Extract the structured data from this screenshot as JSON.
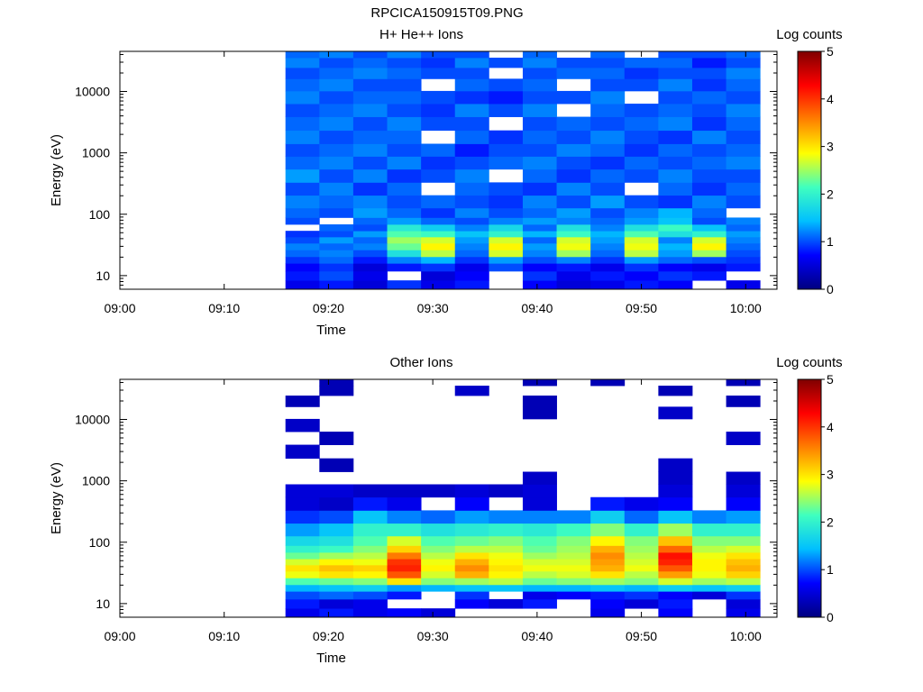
{
  "page_title": "RPCICA150915T09.PNG",
  "colorbar_stops": [
    "#00007f",
    "#0000ff",
    "#00bfff",
    "#3fffbf",
    "#ffff00",
    "#ff7f00",
    "#ff0000",
    "#7f0000"
  ],
  "chart_data": [
    {
      "type": "heatmap",
      "title": "H+ He++ Ions",
      "xlabel": "Time",
      "ylabel": "Energy (eV)",
      "yscale": "log",
      "xlim": [
        "09:00",
        "10:03"
      ],
      "ylim": [
        6,
        45000
      ],
      "xticks": [
        "09:00",
        "09:10",
        "09:20",
        "09:30",
        "09:40",
        "09:50",
        "10:00"
      ],
      "yticks": [
        "10",
        "100",
        "1000",
        "10000"
      ],
      "colorbar": {
        "label": "Log counts",
        "range": [
          0,
          5
        ],
        "ticks": [
          "0",
          "1",
          "2",
          "3",
          "4",
          "5"
        ]
      },
      "time_columns": [
        "09:17:30",
        "09:20:45",
        "09:24:00",
        "09:27:15",
        "09:30:30",
        "09:33:45",
        "09:37:00",
        "09:40:15",
        "09:43:30",
        "09:46:45",
        "09:50:00",
        "09:53:15",
        "09:56:30",
        "09:59:45"
      ],
      "energy_bins": [
        7,
        10,
        14,
        18,
        23,
        30,
        38,
        48,
        60,
        78,
        100,
        160,
        260,
        420,
        700,
        1100,
        1800,
        3000,
        5000,
        8000,
        13000,
        20000,
        30000,
        42000
      ],
      "log_counts": [
        [
          0.6,
          0.8,
          0.5,
          0.9,
          0.6,
          0.8,
          null,
          0.7,
          0.5,
          0.6,
          0.8,
          0.7,
          null,
          0.6
        ],
        [
          0.8,
          1.0,
          0.6,
          null,
          0.5,
          0.7,
          null,
          0.9,
          0.6,
          0.8,
          0.7,
          0.9,
          0.8,
          null
        ],
        [
          0.7,
          0.9,
          0.5,
          0.8,
          0.9,
          0.6,
          1.0,
          0.7,
          0.8,
          0.6,
          0.9,
          0.7,
          0.6,
          0.8
        ],
        [
          0.9,
          1.1,
          0.8,
          1.2,
          1.4,
          0.9,
          1.3,
          1.0,
          1.2,
          0.9,
          1.3,
          1.1,
          1.0,
          0.9
        ],
        [
          1.1,
          1.2,
          1.0,
          1.8,
          2.6,
          1.1,
          2.7,
          1.2,
          2.5,
          1.1,
          2.6,
          1.3,
          2.5,
          1.0
        ],
        [
          1.2,
          1.1,
          1.2,
          2.3,
          2.9,
          1.2,
          2.9,
          1.3,
          2.8,
          1.2,
          2.8,
          1.4,
          2.9,
          1.1
        ],
        [
          1.0,
          1.3,
          1.1,
          2.5,
          2.7,
          1.3,
          2.7,
          1.1,
          2.7,
          1.3,
          2.7,
          1.2,
          2.7,
          1.2
        ],
        [
          0.9,
          1.0,
          1.3,
          2.2,
          2.1,
          1.5,
          2.0,
          1.4,
          2.1,
          1.4,
          2.2,
          1.8,
          2.0,
          1.3
        ],
        [
          null,
          1.1,
          1.0,
          1.9,
          1.6,
          1.2,
          1.7,
          1.1,
          1.8,
          1.2,
          1.8,
          2.1,
          1.5,
          1.1
        ],
        [
          1.0,
          null,
          1.1,
          1.3,
          1.1,
          1.0,
          1.2,
          1.3,
          1.2,
          1.1,
          1.3,
          1.5,
          1.0,
          1.2
        ],
        [
          1.1,
          1.0,
          1.3,
          1.1,
          0.9,
          1.2,
          1.0,
          1.1,
          1.3,
          1.0,
          1.2,
          1.4,
          1.1,
          null
        ],
        [
          1.2,
          1.1,
          1.2,
          1.0,
          1.1,
          1.0,
          0.9,
          1.2,
          1.0,
          1.3,
          1.0,
          0.9,
          1.2,
          1.0
        ],
        [
          1.0,
          1.2,
          0.9,
          1.1,
          null,
          1.1,
          1.0,
          0.9,
          1.2,
          1.0,
          null,
          1.1,
          0.9,
          1.1
        ],
        [
          1.3,
          1.0,
          1.2,
          0.9,
          1.0,
          1.2,
          null,
          1.1,
          0.9,
          1.1,
          1.0,
          1.2,
          1.0,
          1.0
        ],
        [
          1.1,
          1.2,
          1.0,
          1.2,
          0.9,
          1.0,
          1.1,
          1.2,
          1.0,
          0.9,
          1.1,
          1.0,
          1.1,
          1.2
        ],
        [
          1.0,
          1.1,
          1.2,
          1.0,
          1.1,
          0.8,
          1.0,
          1.0,
          1.2,
          1.1,
          0.9,
          1.1,
          1.0,
          1.1
        ],
        [
          1.2,
          1.0,
          1.1,
          1.1,
          null,
          1.1,
          0.9,
          1.1,
          1.0,
          1.2,
          1.0,
          0.9,
          1.2,
          1.0
        ],
        [
          1.1,
          1.2,
          1.0,
          1.2,
          1.0,
          1.0,
          null,
          1.0,
          1.1,
          1.0,
          1.1,
          1.2,
          0.9,
          1.1
        ],
        [
          1.0,
          1.1,
          1.2,
          1.0,
          0.9,
          1.2,
          1.0,
          1.2,
          null,
          1.1,
          1.0,
          1.1,
          1.0,
          1.2
        ],
        [
          1.2,
          1.0,
          1.1,
          1.1,
          1.0,
          0.9,
          0.8,
          1.0,
          1.0,
          1.2,
          null,
          1.0,
          1.1,
          1.0
        ],
        [
          1.1,
          1.2,
          1.0,
          1.0,
          null,
          1.1,
          1.0,
          1.1,
          null,
          1.0,
          1.0,
          1.2,
          0.9,
          1.1
        ],
        [
          1.0,
          1.1,
          1.2,
          1.1,
          1.0,
          1.0,
          null,
          1.0,
          1.1,
          1.1,
          0.9,
          1.0,
          1.0,
          1.2
        ],
        [
          1.2,
          1.0,
          1.1,
          1.0,
          0.9,
          1.2,
          1.0,
          1.2,
          1.0,
          1.0,
          1.1,
          1.1,
          0.8,
          1.0
        ],
        [
          1.1,
          1.2,
          1.0,
          1.2,
          1.0,
          1.0,
          null,
          1.1,
          null,
          1.1,
          null,
          1.0,
          1.0,
          1.1
        ]
      ]
    },
    {
      "type": "heatmap",
      "title": "Other Ions",
      "xlabel": "Time",
      "ylabel": "Energy (eV)",
      "yscale": "log",
      "xlim": [
        "09:00",
        "10:03"
      ],
      "ylim": [
        6,
        45000
      ],
      "xticks": [
        "09:00",
        "09:10",
        "09:20",
        "09:30",
        "09:40",
        "09:50",
        "10:00"
      ],
      "yticks": [
        "10",
        "100",
        "1000",
        "10000"
      ],
      "colorbar": {
        "label": "Log counts",
        "range": [
          0,
          5
        ],
        "ticks": [
          "0",
          "1",
          "2",
          "3",
          "4",
          "5"
        ]
      },
      "time_columns": [
        "09:17:30",
        "09:20:45",
        "09:24:00",
        "09:27:15",
        "09:30:30",
        "09:33:45",
        "09:37:00",
        "09:40:15",
        "09:43:30",
        "09:46:45",
        "09:50:00",
        "09:53:15",
        "09:56:30",
        "09:59:45"
      ],
      "energy_bins": [
        7,
        10,
        14,
        18,
        23,
        30,
        38,
        48,
        60,
        78,
        100,
        160,
        260,
        420,
        700,
        1100,
        1800,
        3000,
        5000,
        8000,
        13000,
        20000,
        30000,
        42000
      ],
      "log_counts": [
        [
          0.6,
          0.8,
          0.6,
          0.7,
          0.5,
          null,
          null,
          null,
          null,
          0.6,
          null,
          0.7,
          null,
          0.6
        ],
        [
          0.8,
          0.5,
          0.6,
          null,
          null,
          0.7,
          0.5,
          0.8,
          null,
          0.7,
          0.5,
          0.8,
          null,
          0.5
        ],
        [
          1.0,
          1.1,
          1.0,
          0.8,
          null,
          0.9,
          null,
          0.6,
          0.7,
          0.8,
          0.9,
          0.7,
          0.5,
          0.9
        ],
        [
          1.4,
          1.5,
          1.6,
          1.3,
          1.4,
          1.5,
          1.5,
          1.4,
          1.4,
          1.5,
          1.4,
          1.6,
          1.5,
          1.6
        ],
        [
          2.2,
          2.3,
          2.4,
          3.0,
          2.4,
          2.5,
          2.6,
          2.3,
          2.4,
          2.5,
          2.4,
          2.7,
          2.5,
          2.6
        ],
        [
          2.8,
          3.0,
          2.9,
          3.8,
          2.7,
          3.3,
          2.9,
          2.6,
          2.7,
          3.0,
          2.6,
          3.4,
          2.8,
          3.1
        ],
        [
          3.0,
          3.2,
          3.1,
          4.1,
          2.9,
          3.5,
          3.0,
          2.8,
          2.8,
          3.3,
          2.8,
          3.8,
          2.9,
          3.3
        ],
        [
          2.7,
          2.9,
          2.8,
          4.0,
          2.8,
          3.3,
          2.9,
          2.7,
          2.7,
          3.4,
          2.7,
          4.1,
          2.9,
          3.2
        ],
        [
          2.3,
          2.5,
          2.6,
          3.6,
          2.6,
          3.0,
          2.8,
          2.5,
          2.6,
          3.5,
          2.6,
          4.2,
          2.8,
          3.0
        ],
        [
          2.0,
          2.1,
          2.4,
          3.1,
          2.4,
          2.6,
          2.6,
          2.3,
          2.5,
          3.3,
          2.5,
          3.7,
          2.6,
          2.7
        ],
        [
          1.7,
          1.8,
          2.2,
          2.7,
          2.2,
          2.3,
          2.4,
          2.2,
          2.4,
          2.9,
          2.4,
          3.2,
          2.4,
          2.4
        ],
        [
          1.3,
          1.5,
          2.0,
          2.0,
          1.8,
          1.9,
          2.0,
          1.9,
          2.1,
          2.4,
          2.0,
          2.5,
          2.0,
          2.0
        ],
        [
          0.9,
          1.0,
          1.5,
          1.2,
          1.1,
          1.3,
          1.2,
          1.2,
          1.2,
          1.6,
          1.1,
          1.5,
          1.2,
          1.3
        ],
        [
          0.5,
          0.4,
          0.8,
          0.6,
          null,
          0.7,
          null,
          0.5,
          null,
          0.8,
          0.6,
          0.7,
          null,
          0.7
        ],
        [
          0.5,
          0.5,
          0.4,
          0.4,
          0.4,
          0.5,
          0.4,
          0.5,
          null,
          null,
          null,
          0.5,
          null,
          0.5
        ],
        [
          null,
          null,
          null,
          null,
          null,
          null,
          null,
          0.4,
          null,
          null,
          null,
          0.4,
          null,
          0.4
        ],
        [
          null,
          0.3,
          null,
          null,
          null,
          null,
          null,
          null,
          null,
          null,
          null,
          0.4,
          null,
          null
        ],
        [
          0.4,
          null,
          null,
          null,
          null,
          null,
          null,
          null,
          null,
          null,
          null,
          null,
          null,
          null
        ],
        [
          null,
          0.3,
          null,
          null,
          null,
          null,
          null,
          null,
          null,
          null,
          null,
          null,
          null,
          0.4
        ],
        [
          0.4,
          null,
          null,
          null,
          null,
          null,
          null,
          null,
          null,
          null,
          null,
          null,
          null,
          null
        ],
        [
          null,
          null,
          null,
          null,
          null,
          null,
          null,
          0.3,
          null,
          null,
          null,
          0.4,
          null,
          null
        ],
        [
          0.3,
          null,
          null,
          null,
          null,
          null,
          null,
          0.3,
          null,
          null,
          null,
          null,
          null,
          0.3
        ],
        [
          null,
          0.3,
          null,
          null,
          null,
          0.4,
          null,
          null,
          null,
          null,
          null,
          0.3,
          null,
          null
        ],
        [
          null,
          0.3,
          null,
          null,
          null,
          null,
          null,
          0.3,
          null,
          0.3,
          null,
          null,
          null,
          0.3
        ]
      ]
    }
  ]
}
